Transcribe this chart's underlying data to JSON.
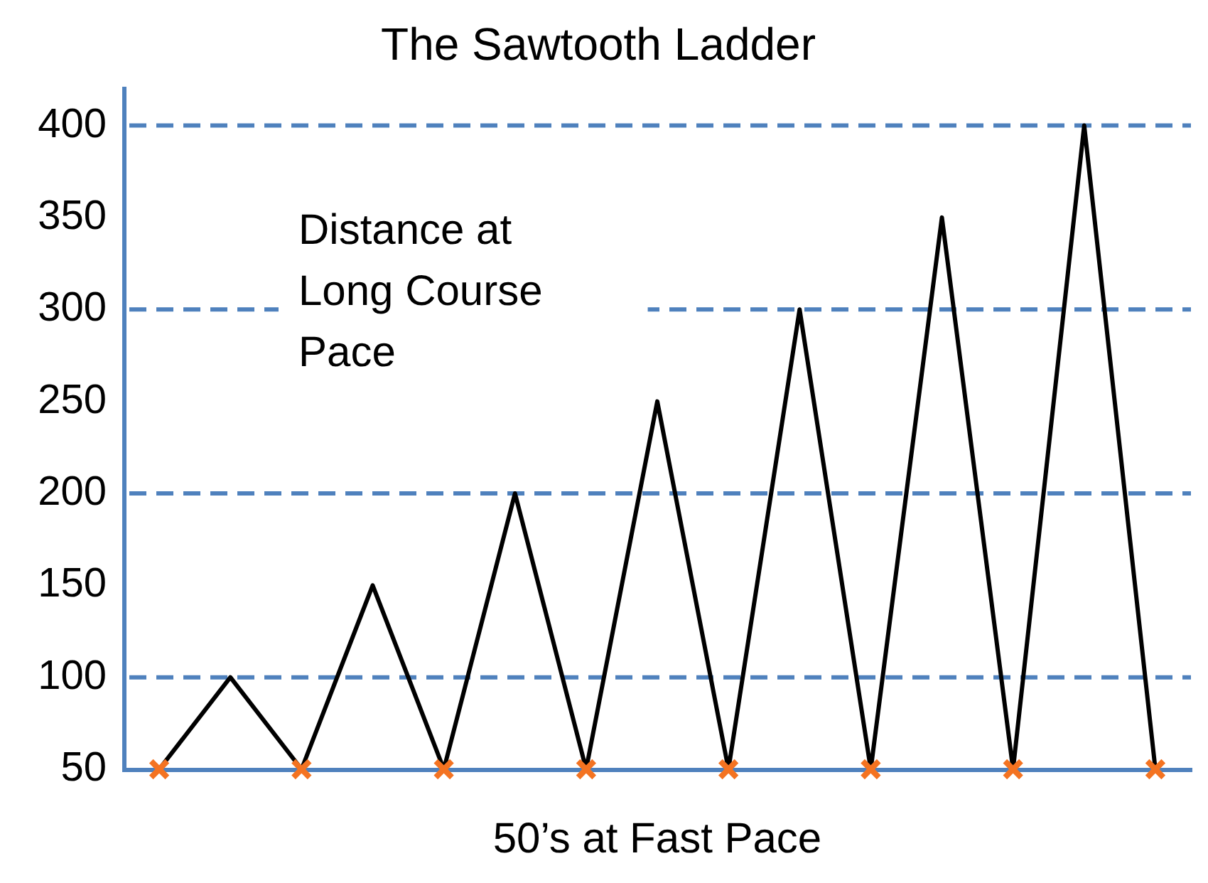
{
  "chart_data": {
    "type": "line",
    "title": "The Sawtooth Ladder",
    "xlabel": "50’s at Fast Pace",
    "annotations": [
      "Distance at Long Course Pace"
    ],
    "categories": [
      null,
      null,
      null,
      null,
      null,
      null,
      null,
      null,
      null,
      null,
      null,
      null,
      null,
      null,
      null
    ],
    "series": [
      {
        "color": "#000000",
        "marker": "none",
        "values": [
          50,
          100,
          50,
          150,
          50,
          200,
          50,
          250,
          50,
          300,
          50,
          350,
          50,
          400,
          50
        ]
      },
      {
        "type": "scatter",
        "color": "#f47321",
        "marker": "cross",
        "values": [
          50,
          null,
          50,
          null,
          50,
          null,
          50,
          null,
          50,
          null,
          50,
          null,
          50,
          null,
          50
        ]
      }
    ],
    "ylim": [
      50,
      420
    ],
    "yticks": [
      50,
      100,
      150,
      200,
      250,
      300,
      350,
      400
    ],
    "tick_labels": "y",
    "ref_lines": [
      {
        "axis": "y",
        "value": 100,
        "color": "#4f81bd",
        "line_style": "dashed"
      },
      {
        "axis": "y",
        "value": 200,
        "color": "#4f81bd",
        "line_style": "dashed"
      },
      {
        "axis": "y",
        "value": 300,
        "color": "#4f81bd",
        "line_style": "dashed"
      },
      {
        "axis": "y",
        "value": 400,
        "color": "#4f81bd",
        "line_style": "dashed"
      }
    ]
  }
}
